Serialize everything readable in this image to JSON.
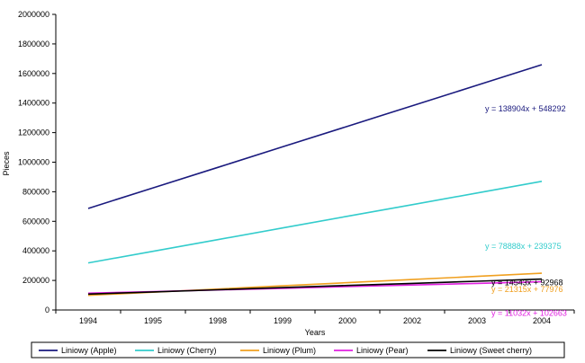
{
  "chart_data": {
    "type": "line",
    "xlabel": "Years",
    "ylabel": "Pieces",
    "categories": [
      "1994",
      "1995",
      "1998",
      "1999",
      "2000",
      "2002",
      "2003",
      "2004"
    ],
    "yticks": [
      "0",
      "200000",
      "400000",
      "600000",
      "800000",
      "1000000",
      "1200000",
      "1400000",
      "1600000",
      "1800000",
      "2000000"
    ],
    "ylim": [
      0,
      2000000
    ],
    "grid": false,
    "legend_position": "bottom",
    "series": [
      {
        "name": "Liniowy (Apple)",
        "color": "#1a1a7e",
        "slope": 138904,
        "intercept": 548292,
        "equation": "y = 138904x + 548292",
        "values": [
          687196,
          826100,
          965004,
          1103908,
          1242812,
          1381716,
          1520620,
          1659524
        ]
      },
      {
        "name": "Liniowy (Cherry)",
        "color": "#33cccc",
        "slope": 78888,
        "intercept": 239375,
        "equation": "y = 78888x + 239375",
        "values": [
          318263,
          397151,
          476039,
          554927,
          633815,
          712703,
          791591,
          870479
        ]
      },
      {
        "name": "Liniowy (Plum)",
        "color": "#f0a020",
        "slope": 21315,
        "intercept": 77976,
        "equation": "y = 21315x + 77976",
        "values": [
          99291,
          120606,
          141921,
          163236,
          184551,
          205866,
          227181,
          248496
        ]
      },
      {
        "name": "Liniowy (Pear)",
        "color": "#e020e0",
        "slope": 11032,
        "intercept": 102663,
        "equation": "y = 11032x + 102663",
        "values": [
          113695,
          124727,
          135759,
          146791,
          157823,
          168855,
          179887,
          190919
        ]
      },
      {
        "name": "Liniowy (Sweet cherry)",
        "color": "#000000",
        "slope": 14543,
        "intercept": 92968,
        "equation": "y = 14543x + 92968",
        "values": [
          107511,
          122054,
          136597,
          151140,
          165683,
          180226,
          194769,
          209312
        ]
      }
    ]
  }
}
